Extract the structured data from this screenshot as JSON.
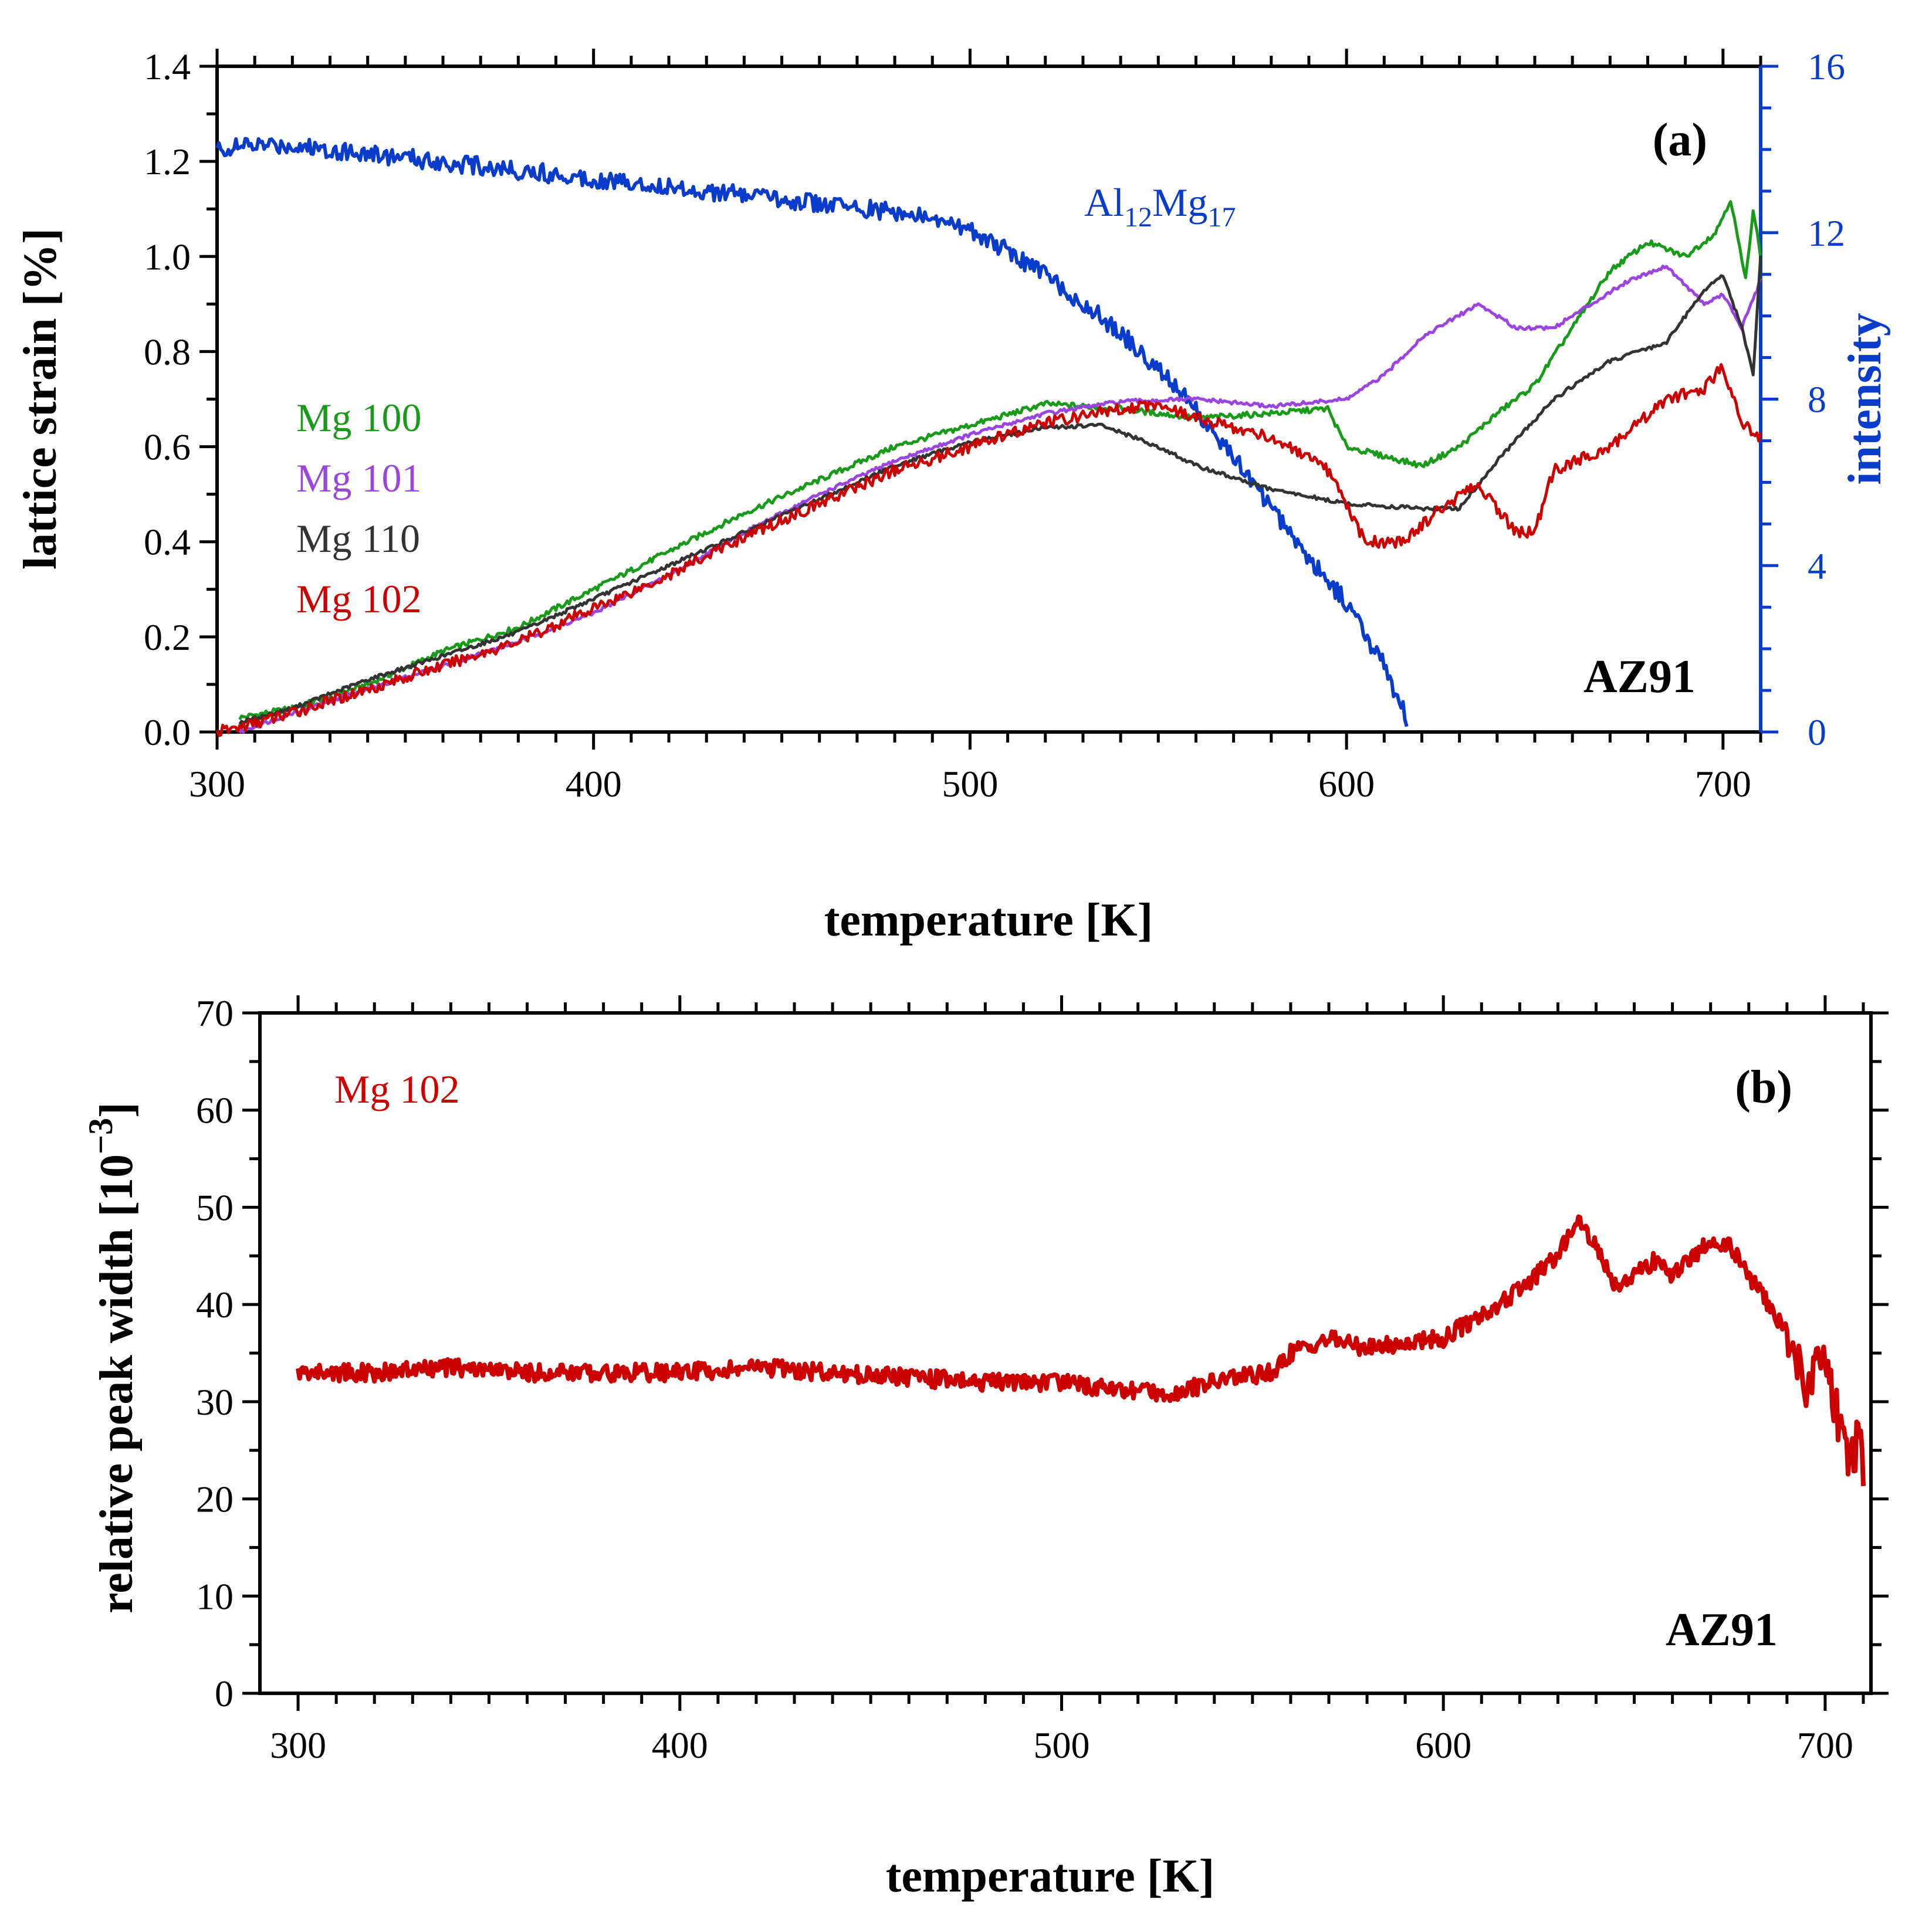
{
  "colors": {
    "mg100": "#1a9a1a",
    "mg101": "#9b45e0",
    "mg110": "#333333",
    "mg102": "#cc0000",
    "al12mg17": "#0a3ccc",
    "axis": "#000000"
  },
  "chart_data": [
    {
      "type": "line",
      "panel_label": "(a)",
      "sample_label": "AZ91",
      "xlabel": "temperature [K]",
      "ylabel": "lattice strain [%]",
      "y2label": "intensity",
      "xlim": [
        300,
        710
      ],
      "ylim": [
        0,
        1.4
      ],
      "y2lim": [
        0,
        16
      ],
      "x_ticks": [
        300,
        400,
        500,
        600,
        700
      ],
      "y_ticks": [
        "0.0",
        "0.2",
        "0.4",
        "0.6",
        "0.8",
        "1.0",
        "1.2",
        "1.4"
      ],
      "y2_ticks": [
        0,
        4,
        8,
        12,
        16
      ],
      "legend_placement": "left",
      "series": [
        {
          "name": "Mg 100",
          "color_key": "mg100",
          "axis": "left",
          "points": [
            [
              306,
              0.03
            ],
            [
              320,
              0.05
            ],
            [
              340,
              0.1
            ],
            [
              360,
              0.17
            ],
            [
              380,
              0.22
            ],
            [
              400,
              0.3
            ],
            [
              420,
              0.38
            ],
            [
              440,
              0.46
            ],
            [
              460,
              0.53
            ],
            [
              480,
              0.6
            ],
            [
              500,
              0.645
            ],
            [
              520,
              0.69
            ],
            [
              540,
              0.68
            ],
            [
              560,
              0.66
            ],
            [
              580,
              0.67
            ],
            [
              595,
              0.68
            ],
            [
              600,
              0.6
            ],
            [
              610,
              0.58
            ],
            [
              620,
              0.56
            ],
            [
              630,
              0.6
            ],
            [
              640,
              0.67
            ],
            [
              650,
              0.73
            ],
            [
              660,
              0.85
            ],
            [
              670,
              0.97
            ],
            [
              680,
              1.03
            ],
            [
              690,
              1.0
            ],
            [
              698,
              1.05
            ],
            [
              702,
              1.12
            ],
            [
              706,
              0.95
            ],
            [
              708,
              1.1
            ],
            [
              710,
              1.0
            ]
          ]
        },
        {
          "name": "Mg 101",
          "color_key": "mg101",
          "axis": "left",
          "points": [
            [
              306,
              0.0
            ],
            [
              320,
              0.04
            ],
            [
              340,
              0.09
            ],
            [
              360,
              0.14
            ],
            [
              380,
              0.19
            ],
            [
              400,
              0.25
            ],
            [
              420,
              0.33
            ],
            [
              440,
              0.42
            ],
            [
              460,
              0.5
            ],
            [
              480,
              0.57
            ],
            [
              500,
              0.625
            ],
            [
              520,
              0.67
            ],
            [
              540,
              0.695
            ],
            [
              560,
              0.7
            ],
            [
              580,
              0.685
            ],
            [
              600,
              0.7
            ],
            [
              610,
              0.75
            ],
            [
              620,
              0.83
            ],
            [
              635,
              0.9
            ],
            [
              645,
              0.85
            ],
            [
              655,
              0.85
            ],
            [
              665,
              0.9
            ],
            [
              675,
              0.95
            ],
            [
              685,
              0.98
            ],
            [
              695,
              0.9
            ],
            [
              700,
              0.92
            ],
            [
              705,
              0.85
            ],
            [
              710,
              0.95
            ]
          ]
        },
        {
          "name": "Mg 110",
          "color_key": "mg110",
          "axis": "left",
          "points": [
            [
              306,
              0.02
            ],
            [
              320,
              0.05
            ],
            [
              340,
              0.11
            ],
            [
              360,
              0.16
            ],
            [
              380,
              0.21
            ],
            [
              400,
              0.28
            ],
            [
              420,
              0.35
            ],
            [
              440,
              0.42
            ],
            [
              460,
              0.49
            ],
            [
              480,
              0.56
            ],
            [
              500,
              0.61
            ],
            [
              520,
              0.64
            ],
            [
              535,
              0.645
            ],
            [
              550,
              0.6
            ],
            [
              560,
              0.56
            ],
            [
              580,
              0.51
            ],
            [
              600,
              0.48
            ],
            [
              620,
              0.47
            ],
            [
              630,
              0.47
            ],
            [
              640,
              0.57
            ],
            [
              655,
              0.7
            ],
            [
              670,
              0.78
            ],
            [
              685,
              0.82
            ],
            [
              695,
              0.93
            ],
            [
              700,
              0.96
            ],
            [
              705,
              0.85
            ],
            [
              708,
              0.75
            ],
            [
              710,
              1.0
            ]
          ]
        },
        {
          "name": "Mg 102",
          "color_key": "mg102",
          "axis": "left",
          "points": [
            [
              300,
              0.0
            ],
            [
              306,
              0.01
            ],
            [
              320,
              0.04
            ],
            [
              340,
              0.09
            ],
            [
              360,
              0.14
            ],
            [
              380,
              0.19
            ],
            [
              400,
              0.26
            ],
            [
              420,
              0.33
            ],
            [
              440,
              0.41
            ],
            [
              460,
              0.48
            ],
            [
              480,
              0.55
            ],
            [
              500,
              0.6
            ],
            [
              520,
              0.65
            ],
            [
              540,
              0.68
            ],
            [
              550,
              0.69
            ],
            [
              560,
              0.66
            ],
            [
              580,
              0.62
            ],
            [
              595,
              0.55
            ],
            [
              605,
              0.4
            ],
            [
              615,
              0.4
            ],
            [
              625,
              0.47
            ],
            [
              635,
              0.52
            ],
            [
              645,
              0.42
            ],
            [
              650,
              0.42
            ],
            [
              655,
              0.55
            ],
            [
              670,
              0.6
            ],
            [
              685,
              0.7
            ],
            [
              695,
              0.72
            ],
            [
              700,
              0.77
            ],
            [
              705,
              0.65
            ],
            [
              710,
              0.62
            ]
          ]
        },
        {
          "name": "Al12Mg17",
          "label_parts": [
            "Al",
            "12",
            "Mg",
            "17"
          ],
          "color_key": "al12mg17",
          "axis": "right",
          "points": [
            [
              300,
              14.0
            ],
            [
              310,
              14.1
            ],
            [
              320,
              14.1
            ],
            [
              340,
              13.9
            ],
            [
              360,
              13.7
            ],
            [
              380,
              13.5
            ],
            [
              400,
              13.3
            ],
            [
              420,
              13.1
            ],
            [
              440,
              12.9
            ],
            [
              460,
              12.7
            ],
            [
              480,
              12.5
            ],
            [
              500,
              12.1
            ],
            [
              520,
              11.0
            ],
            [
              540,
              9.6
            ],
            [
              550,
              8.7
            ],
            [
              555,
              8.3
            ],
            [
              560,
              7.7
            ],
            [
              570,
              6.6
            ],
            [
              580,
              5.4
            ],
            [
              590,
              4.2
            ],
            [
              600,
              3.1
            ],
            [
              610,
              1.6
            ],
            [
              616,
              0.3
            ]
          ]
        }
      ]
    },
    {
      "type": "line",
      "panel_label": "(b)",
      "sample_label": "AZ91",
      "xlabel": "temperature [K]",
      "ylabel_main": "relative peak width [10",
      "ylabel_sup": "−3",
      "ylabel_end": "]",
      "xlim": [
        290,
        712
      ],
      "ylim": [
        0,
        70
      ],
      "x_ticks": [
        300,
        400,
        500,
        600,
        700
      ],
      "y_ticks": [
        0,
        10,
        20,
        30,
        40,
        50,
        60,
        70
      ],
      "series": [
        {
          "name": "Mg 102",
          "color_key": "mg102",
          "points": [
            [
              300,
              33
            ],
            [
              320,
              33
            ],
            [
              340,
              33.5
            ],
            [
              360,
              33
            ],
            [
              380,
              33
            ],
            [
              400,
              33
            ],
            [
              420,
              33.5
            ],
            [
              440,
              33
            ],
            [
              460,
              32.5
            ],
            [
              480,
              32
            ],
            [
              500,
              32
            ],
            [
              520,
              31
            ],
            [
              530,
              31
            ],
            [
              545,
              32.5
            ],
            [
              555,
              33
            ],
            [
              560,
              35
            ],
            [
              570,
              36.5
            ],
            [
              580,
              35.5
            ],
            [
              590,
              36
            ],
            [
              600,
              36.5
            ],
            [
              610,
              39
            ],
            [
              620,
              41.5
            ],
            [
              630,
              45
            ],
            [
              635,
              49
            ],
            [
              640,
              46
            ],
            [
              645,
              42
            ],
            [
              650,
              43
            ],
            [
              655,
              44.5
            ],
            [
              660,
              43
            ],
            [
              665,
              45
            ],
            [
              670,
              46.5
            ],
            [
              675,
              46
            ],
            [
              680,
              43
            ],
            [
              690,
              37
            ],
            [
              695,
              32
            ],
            [
              700,
              35
            ],
            [
              703,
              29
            ],
            [
              706,
              24
            ],
            [
              709,
              26
            ],
            [
              710,
              22
            ]
          ]
        }
      ]
    }
  ]
}
